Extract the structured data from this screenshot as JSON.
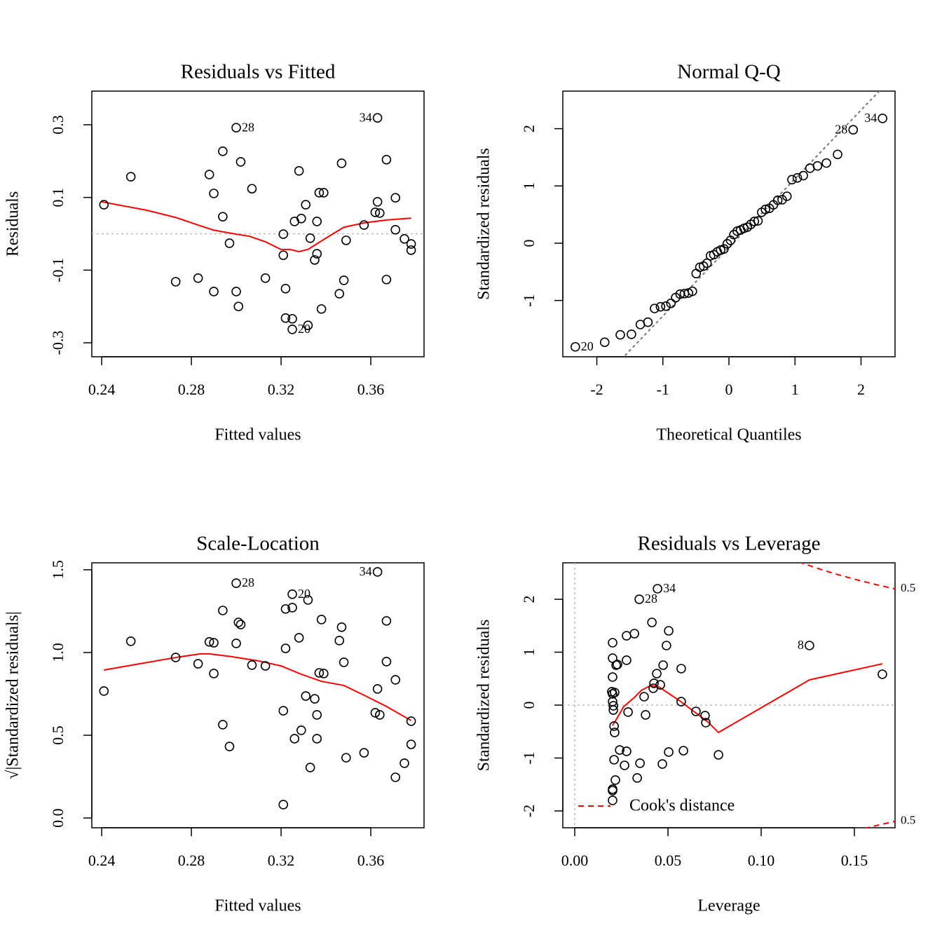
{
  "chart_data": [
    {
      "type": "scatter",
      "title": "Residuals vs Fitted",
      "x_label": "Fitted values",
      "y_label": "Residuals",
      "xlim": [
        0.2356,
        0.38375
      ],
      "ylim": [
        -0.3384,
        0.3926
      ],
      "xticks": [
        0.24,
        0.28,
        0.32,
        0.36
      ],
      "yticks": [
        -0.3,
        -0.1,
        0.1,
        0.3
      ],
      "points": {
        "color": "#000000",
        "x": [
          0.241,
          0.253,
          0.273,
          0.283,
          0.288,
          0.29,
          0.29,
          0.294,
          0.294,
          0.297,
          0.3,
          0.3,
          0.301,
          0.302,
          0.307,
          0.313,
          0.321,
          0.321,
          0.322,
          0.322,
          0.325,
          0.325,
          0.326,
          0.328,
          0.329,
          0.331,
          0.332,
          0.333,
          0.335,
          0.336,
          0.336,
          0.338,
          0.337,
          0.339,
          0.346,
          0.347,
          0.348,
          0.349,
          0.357,
          0.362,
          0.363,
          0.363,
          0.364,
          0.367,
          0.367,
          0.371,
          0.371,
          0.375,
          0.378,
          0.378
        ],
        "y": [
          0.08,
          0.157,
          -0.132,
          -0.122,
          0.163,
          0.111,
          -0.159,
          0.227,
          0.047,
          -0.026,
          0.292,
          -0.159,
          -0.2,
          0.198,
          0.124,
          -0.122,
          -0.001,
          -0.059,
          -0.151,
          -0.232,
          -0.234,
          -0.263,
          0.034,
          0.173,
          0.042,
          0.08,
          -0.252,
          -0.012,
          -0.072,
          0.034,
          -0.055,
          -0.207,
          0.113,
          0.113,
          -0.165,
          0.194,
          -0.128,
          -0.018,
          0.024,
          0.059,
          0.088,
          0.319,
          0.057,
          0.204,
          -0.126,
          0.099,
          0.011,
          -0.014,
          -0.028,
          -0.045
        ]
      },
      "smooth": {
        "color": "#ff0000",
        "x": [
          0.24,
          0.26,
          0.273,
          0.284,
          0.29,
          0.298,
          0.306,
          0.313,
          0.32,
          0.324,
          0.328,
          0.332,
          0.34,
          0.348,
          0.357,
          0.367,
          0.378
        ],
        "y": [
          0.088,
          0.065,
          0.045,
          0.022,
          0.01,
          0.001,
          -0.007,
          -0.022,
          -0.043,
          -0.043,
          -0.049,
          -0.043,
          -0.012,
          0.018,
          0.03,
          0.038,
          0.043
        ]
      },
      "hline": 0,
      "point_labels": [
        {
          "text": "28",
          "x": 0.3,
          "y": 0.292,
          "side": "right"
        },
        {
          "text": "34",
          "x": 0.363,
          "y": 0.319,
          "side": "left"
        },
        {
          "text": "20",
          "x": 0.325,
          "y": -0.263,
          "side": "right"
        }
      ]
    },
    {
      "type": "scatter",
      "title": "Normal Q-Q",
      "x_label": "Theoretical Quantiles",
      "y_label": "Standardized residuals",
      "xlim": [
        -2.515,
        2.515
      ],
      "ylim": [
        -1.983,
        2.656
      ],
      "xticks": [
        -2,
        -1,
        0,
        1,
        2
      ],
      "yticks": [
        -1,
        0,
        1,
        2
      ],
      "points": {
        "color": "#000000",
        "x": [
          -2.326,
          -1.881,
          -1.645,
          -1.476,
          -1.341,
          -1.227,
          -1.126,
          -1.036,
          -0.954,
          -0.878,
          -0.806,
          -0.739,
          -0.674,
          -0.613,
          -0.553,
          -0.496,
          -0.44,
          -0.385,
          -0.332,
          -0.279,
          -0.228,
          -0.176,
          -0.126,
          -0.075,
          -0.025,
          0.025,
          0.075,
          0.126,
          0.176,
          0.228,
          0.279,
          0.332,
          0.385,
          0.44,
          0.496,
          0.553,
          0.613,
          0.674,
          0.739,
          0.806,
          0.878,
          0.954,
          1.036,
          1.126,
          1.227,
          1.341,
          1.476,
          1.645,
          1.881,
          2.326
        ],
        "y": [
          -1.81,
          -1.73,
          -1.6,
          -1.59,
          -1.42,
          -1.38,
          -1.14,
          -1.11,
          -1.1,
          -1.05,
          -0.95,
          -0.89,
          -0.88,
          -0.87,
          -0.84,
          -0.53,
          -0.42,
          -0.4,
          -0.35,
          -0.22,
          -0.2,
          -0.15,
          -0.12,
          -0.1,
          -0.01,
          0.05,
          0.15,
          0.21,
          0.23,
          0.26,
          0.28,
          0.33,
          0.38,
          0.39,
          0.54,
          0.59,
          0.61,
          0.67,
          0.75,
          0.76,
          0.82,
          1.11,
          1.14,
          1.18,
          1.31,
          1.35,
          1.4,
          1.55,
          1.98,
          2.18
        ]
      },
      "qqline": {
        "intercept": -0.074,
        "slope": 1.199,
        "color": "#777777"
      },
      "point_labels": [
        {
          "text": "20",
          "x": -2.326,
          "y": -1.81,
          "side": "right"
        },
        {
          "text": "28",
          "x": 1.881,
          "y": 1.98,
          "side": "left"
        },
        {
          "text": "34",
          "x": 2.326,
          "y": 2.18,
          "side": "left"
        }
      ]
    },
    {
      "type": "scatter",
      "title": "Scale-Location",
      "x_label": "Fitted values",
      "y_label": "√|Standardized residuals|",
      "xlim": [
        0.2356,
        0.38375
      ],
      "ylim": [
        -0.059,
        1.542
      ],
      "xticks": [
        0.24,
        0.28,
        0.32,
        0.36
      ],
      "yticks": [
        {
          "value": 0,
          "label": "0.0"
        },
        0.5,
        {
          "value": 1,
          "label": "1.0"
        },
        1.5
      ],
      "points": {
        "color": "#000000",
        "x": [
          0.241,
          0.253,
          0.273,
          0.283,
          0.288,
          0.29,
          0.29,
          0.294,
          0.294,
          0.297,
          0.3,
          0.3,
          0.301,
          0.302,
          0.307,
          0.313,
          0.321,
          0.321,
          0.322,
          0.322,
          0.325,
          0.325,
          0.326,
          0.328,
          0.329,
          0.331,
          0.332,
          0.333,
          0.335,
          0.336,
          0.336,
          0.338,
          0.337,
          0.339,
          0.346,
          0.347,
          0.348,
          0.349,
          0.357,
          0.362,
          0.363,
          0.363,
          0.364,
          0.367,
          0.367,
          0.371,
          0.371,
          0.375,
          0.378,
          0.378
        ],
        "y": [
          0.767,
          1.068,
          0.97,
          0.932,
          1.064,
          1.059,
          0.873,
          1.254,
          0.564,
          0.432,
          1.419,
          1.055,
          1.182,
          1.169,
          0.924,
          0.919,
          0.648,
          0.081,
          1.263,
          1.025,
          1.352,
          1.271,
          0.479,
          1.089,
          0.53,
          0.737,
          1.318,
          0.305,
          0.72,
          0.623,
          0.479,
          1.199,
          0.877,
          0.873,
          1.072,
          1.153,
          0.941,
          0.364,
          0.394,
          0.636,
          0.78,
          1.487,
          0.623,
          1.191,
          0.945,
          0.835,
          0.246,
          0.331,
          0.585,
          0.445
        ]
      },
      "smooth": {
        "color": "#ff0000",
        "x": [
          0.241,
          0.257,
          0.273,
          0.284,
          0.288,
          0.298,
          0.31,
          0.32,
          0.329,
          0.338,
          0.348,
          0.357,
          0.367,
          0.378
        ],
        "y": [
          0.894,
          0.932,
          0.97,
          0.992,
          0.992,
          0.975,
          0.949,
          0.919,
          0.869,
          0.826,
          0.801,
          0.742,
          0.674,
          0.589
        ]
      },
      "point_labels": [
        {
          "text": "28",
          "x": 0.3,
          "y": 1.419,
          "side": "right"
        },
        {
          "text": "20",
          "x": 0.325,
          "y": 1.352,
          "side": "right"
        },
        {
          "text": "34",
          "x": 0.363,
          "y": 1.487,
          "side": "left"
        }
      ]
    },
    {
      "type": "scatter",
      "title": "Residuals vs Leverage",
      "x_label": "Leverage",
      "y_label": "Standardized residuals",
      "xlim": [
        -0.0064,
        0.1718
      ],
      "ylim": [
        -2.318,
        2.689
      ],
      "xticks": [
        {
          "value": 0,
          "label": "0.00"
        },
        0.05,
        {
          "value": 0.1,
          "label": "0.10"
        },
        0.15
      ],
      "yticks": [
        -2,
        -1,
        0,
        1,
        2
      ],
      "points": {
        "color": "#000000",
        "x": [
          0.0203,
          0.0203,
          0.0203,
          0.0199,
          0.0203,
          0.0214,
          0.0207,
          0.0207,
          0.0211,
          0.0214,
          0.0211,
          0.0203,
          0.0203,
          0.0203,
          0.0218,
          0.0222,
          0.0229,
          0.0241,
          0.0267,
          0.0278,
          0.0278,
          0.0278,
          0.0286,
          0.032,
          0.0335,
          0.035,
          0.0346,
          0.0372,
          0.038,
          0.0414,
          0.0421,
          0.0425,
          0.044,
          0.0444,
          0.0459,
          0.047,
          0.0474,
          0.0492,
          0.0504,
          0.0504,
          0.0571,
          0.0571,
          0.0583,
          0.065,
          0.0699,
          0.0703,
          0.0771,
          0.1259,
          0.165,
          0.0203
        ],
        "y": [
          1.179,
          0.887,
          0.53,
          0.252,
          0.212,
          0.238,
          -0.013,
          -0.093,
          -0.397,
          -0.517,
          -1.033,
          -1.589,
          -1.616,
          -1.801,
          -1.417,
          0.755,
          0.768,
          -0.848,
          -1.139,
          -0.874,
          0.848,
          1.311,
          -0.132,
          1.351,
          -1.377,
          -1.099,
          2.0,
          0.159,
          -0.185,
          1.563,
          0.318,
          0.411,
          0.596,
          2.199,
          0.384,
          -1.113,
          0.755,
          1.126,
          -0.887,
          1.404,
          0.066,
          0.689,
          -0.861,
          -0.119,
          -0.199,
          -0.331,
          -0.94,
          1.126,
          0.583,
          0.066
        ]
      },
      "smooth": {
        "color": "#ff0000",
        "x": [
          0.0203,
          0.0226,
          0.0263,
          0.032,
          0.0357,
          0.0406,
          0.0451,
          0.0508,
          0.0564,
          0.0639,
          0.0714,
          0.0771,
          0.1259,
          0.165
        ],
        "y": [
          -0.384,
          -0.252,
          -0.026,
          0.146,
          0.278,
          0.371,
          0.344,
          0.212,
          0.079,
          -0.119,
          -0.318,
          -0.517,
          0.477,
          0.781
        ]
      },
      "hline": 0,
      "vline": 0,
      "contours": [
        {
          "label": "0.5",
          "color": "#ff0000",
          "x": [
            0.12,
            0.13,
            0.14,
            0.15,
            0.16,
            0.1718
          ],
          "y": [
            2.708,
            2.587,
            2.478,
            2.38,
            2.291,
            2.196
          ]
        },
        {
          "label": "0.5",
          "color": "#ff0000",
          "x": [
            0.12,
            0.13,
            0.14,
            0.15,
            0.16,
            0.1718
          ],
          "y": [
            -2.708,
            -2.587,
            -2.478,
            -2.38,
            -2.291,
            -2.196
          ]
        }
      ],
      "legend": {
        "text": "Cook's distance",
        "position": "bottomleft",
        "color": "#ff0000"
      },
      "point_labels": [
        {
          "text": "34",
          "x": 0.0444,
          "y": 2.199,
          "side": "right"
        },
        {
          "text": "28",
          "x": 0.0346,
          "y": 2.0,
          "side": "right"
        },
        {
          "text": "8",
          "x": 0.1259,
          "y": 1.126,
          "side": "left"
        }
      ]
    }
  ]
}
